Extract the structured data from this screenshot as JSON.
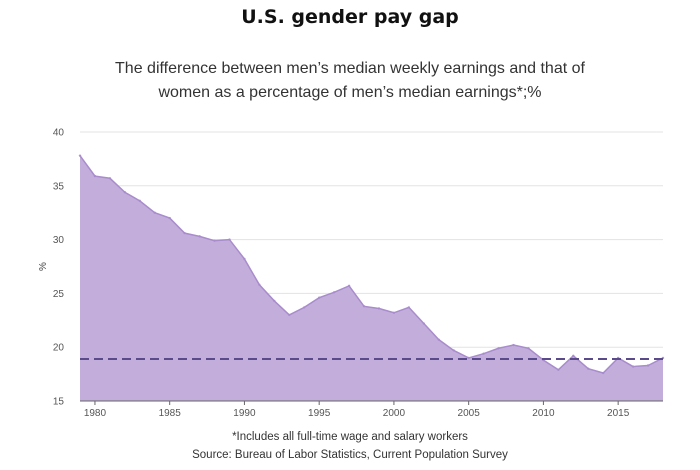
{
  "title": "U.S. gender pay gap",
  "subtitle": "The difference between men’s median weekly earnings and that of women as a percentage of men’s median earnings*;%",
  "footnote": "*Includes all full-time wage and salary workers",
  "source": "Source: Bureau of Labor Statistics, Current Population Survey",
  "colors": {
    "area_fill": "#c3aedb",
    "area_stroke": "#a88ccc",
    "reference_line": "#5b4a8a",
    "grid": "#e3e3e3"
  },
  "chart_data": {
    "type": "area",
    "title": "U.S. gender pay gap",
    "ylabel": "%",
    "xlabel": "",
    "xlim": [
      1979,
      2018
    ],
    "ylim": [
      15,
      40
    ],
    "grid": true,
    "x_ticks": [
      1980,
      1985,
      1990,
      1995,
      2000,
      2005,
      2010,
      2015
    ],
    "y_ticks": [
      15,
      20,
      25,
      30,
      35,
      40
    ],
    "x": [
      1979,
      1980,
      1981,
      1982,
      1983,
      1984,
      1985,
      1986,
      1987,
      1988,
      1989,
      1990,
      1991,
      1992,
      1993,
      1994,
      1995,
      1996,
      1997,
      1998,
      1999,
      2000,
      2001,
      2002,
      2003,
      2004,
      2005,
      2006,
      2007,
      2008,
      2009,
      2010,
      2011,
      2012,
      2013,
      2014,
      2015,
      2016,
      2017,
      2018
    ],
    "series": [
      {
        "values": [
          37.8,
          35.9,
          35.7,
          34.4,
          33.6,
          32.5,
          32.0,
          30.6,
          30.3,
          29.9,
          30.0,
          28.2,
          25.8,
          24.3,
          23.0,
          23.7,
          24.6,
          25.1,
          25.7,
          23.8,
          23.6,
          23.2,
          23.7,
          22.2,
          20.7,
          19.7,
          19.0,
          19.4,
          19.9,
          20.2,
          19.9,
          18.8,
          17.9,
          19.2,
          18.0,
          17.6,
          19.0,
          18.2,
          18.3,
          19.0
        ]
      }
    ],
    "reference_line": {
      "y": 18.9,
      "style": "dashed"
    }
  }
}
